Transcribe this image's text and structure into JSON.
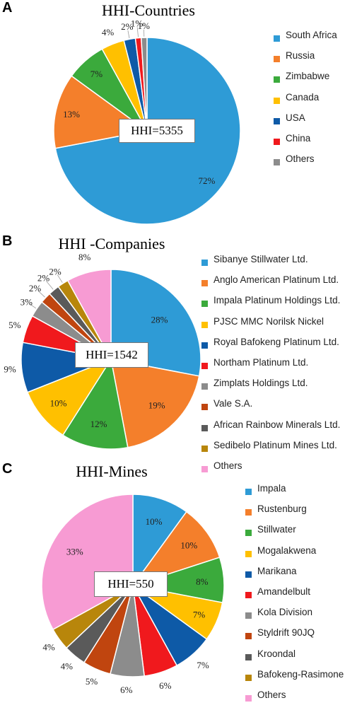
{
  "chart_data": [
    {
      "type": "pie",
      "panel": "A",
      "title": "HHI-Countries",
      "annotation": "HHI=5355",
      "categories": [
        "South Africa",
        "Russia",
        "Zimbabwe",
        "Canada",
        "USA",
        "China",
        "Others"
      ],
      "labels": [
        "72%",
        "13%",
        "7%",
        "4%",
        "2%",
        "1%",
        "1%"
      ],
      "values": [
        72,
        13,
        7,
        4,
        2,
        1,
        1
      ],
      "colors": [
        "#2E9BD6",
        "#F47F2B",
        "#3BAA3C",
        "#FFC000",
        "#0E5AA7",
        "#F0191D",
        "#8C8C8C"
      ]
    },
    {
      "type": "pie",
      "panel": "B",
      "title": "HHI -Companies",
      "annotation": "HHI=1542",
      "categories": [
        "Sibanye Stillwater Ltd.",
        "Anglo American Platinum Ltd.",
        "Impala Platinum Holdings Ltd.",
        "PJSC MMC Norilsk Nickel",
        "Royal Bafokeng Platinum Ltd.",
        "Northam Platinum Ltd.",
        "Zimplats Holdings Ltd.",
        "Vale S.A.",
        "African Rainbow Minerals Ltd.",
        "Sedibelo Platinum Mines Ltd.",
        "Others"
      ],
      "labels": [
        "28%",
        "19%",
        "12%",
        "10%",
        "9%",
        "5%",
        "3%",
        "2%",
        "2%",
        "2%",
        "8%"
      ],
      "values": [
        28,
        19,
        12,
        10,
        9,
        5,
        3,
        2,
        2,
        2,
        8
      ],
      "colors": [
        "#2E9BD6",
        "#F47F2B",
        "#3BAA3C",
        "#FFC000",
        "#0E5AA7",
        "#F0191D",
        "#8C8C8C",
        "#C0450F",
        "#5A5A5A",
        "#B8860B",
        "#F79BD3"
      ]
    },
    {
      "type": "pie",
      "panel": "C",
      "title": "HHI-Mines",
      "annotation": "HHI=550",
      "categories": [
        "Impala",
        "Rustenburg",
        "Stillwater",
        "Mogalakwena",
        "Marikana",
        "Amandelbult",
        "Kola Division",
        "Styldrift 90JQ",
        "Kroondal",
        "Bafokeng-Rasimone",
        "Others"
      ],
      "labels": [
        "10%",
        "10%",
        "8%",
        "7%",
        "7%",
        "6%",
        "6%",
        "5%",
        "4%",
        "4%",
        "33%"
      ],
      "values": [
        10,
        10,
        8,
        7,
        7,
        6,
        6,
        5,
        4,
        4,
        33
      ],
      "colors": [
        "#2E9BD6",
        "#F47F2B",
        "#3BAA3C",
        "#FFC000",
        "#0E5AA7",
        "#F0191D",
        "#8C8C8C",
        "#C0450F",
        "#5A5A5A",
        "#B8860B",
        "#F79BD3"
      ]
    }
  ]
}
